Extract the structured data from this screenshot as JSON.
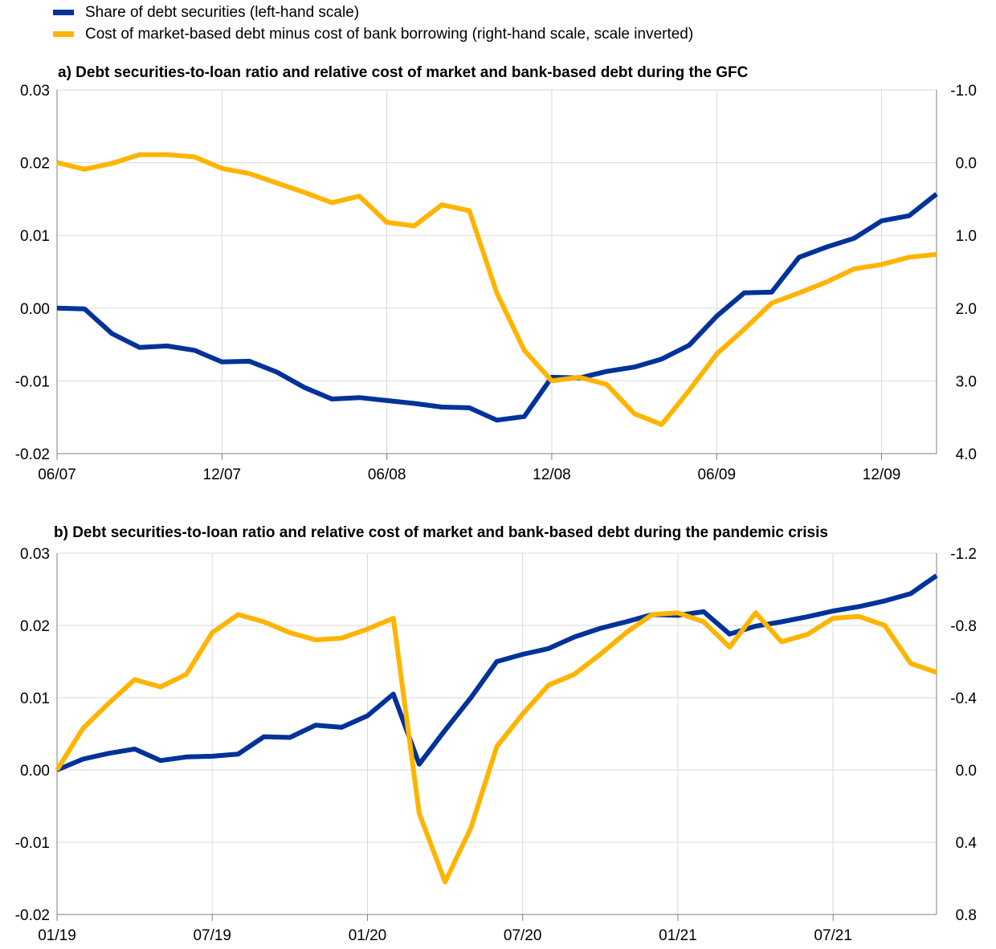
{
  "legend": [
    {
      "label": "Share of debt securities (left-hand scale)",
      "color": "#003299"
    },
    {
      "label": "Cost of market-based debt minus cost of bank borrowing (right-hand scale, scale inverted)",
      "color": "#FFB400"
    }
  ],
  "chart_data": [
    {
      "type": "line",
      "title": "a) Debt securities-to-loan ratio and relative cost of market and bank-based debt during the GFC",
      "y_left": {
        "ticks": [
          "0.03",
          "0.02",
          "0.01",
          "0.00",
          "-0.01",
          "-0.02"
        ],
        "lim": [
          -0.02,
          0.03
        ]
      },
      "y_right": {
        "ticks": [
          "-1.0",
          "0.0",
          "1.0",
          "2.0",
          "3.0",
          "4.0"
        ],
        "lim": [
          -1.0,
          4.0
        ],
        "inverted": true
      },
      "x_ticks": [
        "06/07",
        "12/07",
        "06/08",
        "12/08",
        "06/09",
        "12/09"
      ],
      "x": [
        "06/07",
        "07/07",
        "08/07",
        "09/07",
        "10/07",
        "11/07",
        "12/07",
        "01/08",
        "02/08",
        "03/08",
        "04/08",
        "05/08",
        "06/08",
        "07/08",
        "08/08",
        "09/08",
        "10/08",
        "11/08",
        "12/08",
        "01/09",
        "02/09",
        "03/09",
        "04/09",
        "05/09",
        "06/09",
        "07/09",
        "08/09",
        "09/09",
        "10/09",
        "11/09",
        "12/09",
        "01/10",
        "02/10"
      ],
      "grid": true,
      "series": [
        {
          "name": "Share of debt securities (left-hand scale)",
          "axis": "left",
          "color": "#003299",
          "values": [
            0.0,
            -0.0001,
            -0.0035,
            -0.0054,
            -0.0052,
            -0.0058,
            -0.0074,
            -0.0073,
            -0.0088,
            -0.0109,
            -0.0125,
            -0.0123,
            -0.0127,
            -0.0131,
            -0.0136,
            -0.0137,
            -0.0154,
            -0.0149,
            -0.0095,
            -0.0096,
            -0.0087,
            -0.0081,
            -0.007,
            -0.0051,
            -0.0011,
            0.0021,
            0.0022,
            0.007,
            0.0084,
            0.0096,
            0.012,
            0.0127,
            0.0157
          ]
        },
        {
          "name": "Cost of market-based debt minus cost of bank borrowing (right-hand scale, scale inverted)",
          "axis": "right",
          "color": "#FFB400",
          "values": [
            0.0,
            0.09,
            0.01,
            -0.11,
            -0.11,
            -0.08,
            0.08,
            0.15,
            0.28,
            0.41,
            0.55,
            0.46,
            0.82,
            0.87,
            0.58,
            0.66,
            1.79,
            2.58,
            3.0,
            2.95,
            3.05,
            3.45,
            3.6,
            3.13,
            2.63,
            2.29,
            1.93,
            1.79,
            1.64,
            1.46,
            1.4,
            1.3,
            1.26
          ]
        }
      ]
    },
    {
      "type": "line",
      "title": "b) Debt securities-to-loan ratio and relative cost of market and bank-based debt during the pandemic crisis",
      "y_left": {
        "ticks": [
          "0.03",
          "0.02",
          "0.01",
          "0.00",
          "-0.01",
          "-0.02"
        ],
        "lim": [
          -0.02,
          0.03
        ]
      },
      "y_right": {
        "ticks": [
          "-1.2",
          "-0.8",
          "-0.4",
          "0.0",
          "0.4",
          "0.8"
        ],
        "lim": [
          -1.2,
          0.8
        ],
        "inverted": true
      },
      "x_ticks": [
        "01/19",
        "07/19",
        "01/20",
        "07/20",
        "01/21",
        "07/21"
      ],
      "x": [
        "01/19",
        "02/19",
        "03/19",
        "04/19",
        "05/19",
        "06/19",
        "07/19",
        "08/19",
        "09/19",
        "10/19",
        "11/19",
        "12/19",
        "01/20",
        "02/20",
        "03/20",
        "04/20",
        "05/20",
        "06/20",
        "07/20",
        "08/20",
        "09/20",
        "10/20",
        "11/20",
        "12/20",
        "01/21",
        "02/21",
        "03/21",
        "04/21",
        "05/21",
        "06/21",
        "07/21",
        "08/21",
        "09/21",
        "10/21",
        "11/21"
      ],
      "grid": true,
      "series": [
        {
          "name": "Share of debt securities (left-hand scale)",
          "axis": "left",
          "color": "#003299",
          "values": [
            0.0,
            0.0015,
            0.0023,
            0.0029,
            0.0013,
            0.0018,
            0.0019,
            0.0022,
            0.0046,
            0.0045,
            0.0062,
            0.0059,
            0.0075,
            0.0105,
            0.0008,
            0.0055,
            0.01,
            0.015,
            0.016,
            0.0168,
            0.0184,
            0.0196,
            0.0205,
            0.0215,
            0.0214,
            0.0219,
            0.0188,
            0.0199,
            0.0205,
            0.0212,
            0.022,
            0.0226,
            0.0234,
            0.0244,
            0.0269
          ]
        },
        {
          "name": "Cost of market-based debt minus cost of bank borrowing (right-hand scale, scale inverted)",
          "axis": "right",
          "color": "#FFB400",
          "values": [
            0.0,
            -0.23,
            -0.37,
            -0.5,
            -0.46,
            -0.53,
            -0.76,
            -0.86,
            -0.82,
            -0.76,
            -0.72,
            -0.73,
            -0.78,
            -0.84,
            0.24,
            0.62,
            0.32,
            -0.13,
            -0.31,
            -0.47,
            -0.53,
            -0.64,
            -0.76,
            -0.86,
            -0.87,
            -0.82,
            -0.68,
            -0.87,
            -0.71,
            -0.75,
            -0.84,
            -0.85,
            -0.8,
            -0.59,
            -0.54
          ]
        }
      ]
    }
  ]
}
